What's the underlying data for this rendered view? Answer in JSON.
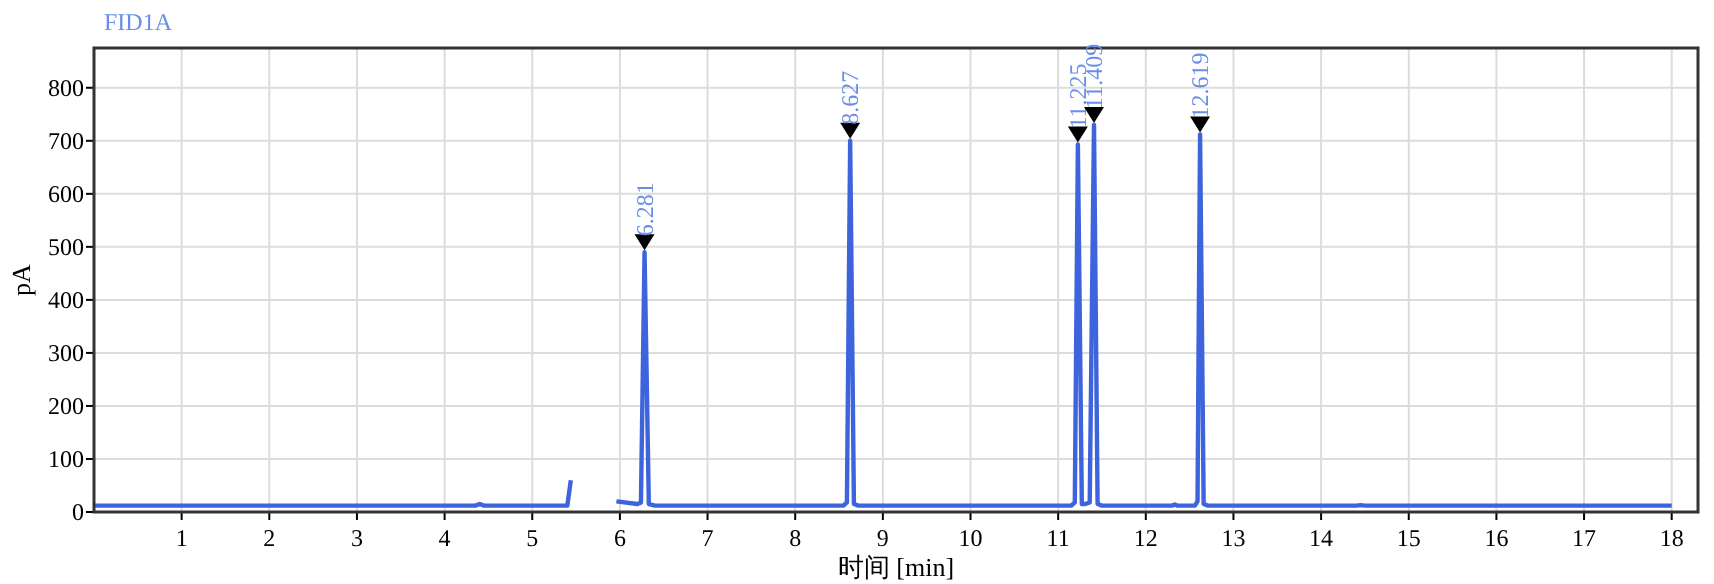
{
  "chart_data": {
    "type": "line",
    "title": "FID1A",
    "xlabel": "时间 [min]",
    "ylabel": "pA",
    "x": [
      0,
      4.35,
      4.4,
      4.45,
      5.4,
      5.44,
      5.47,
      5.93,
      5.96,
      6.2,
      6.24,
      6.281,
      6.33,
      6.4,
      8.55,
      8.59,
      8.627,
      8.67,
      8.72,
      11.15,
      11.19,
      11.225,
      11.27,
      11.31,
      11.36,
      11.409,
      11.45,
      11.5,
      12.3,
      12.33,
      12.36,
      12.56,
      12.59,
      12.619,
      12.66,
      12.71,
      14.4,
      14.45,
      14.5,
      18
    ],
    "values": [
      12,
      12,
      15,
      12,
      12,
      60,
      null,
      null,
      20,
      15,
      18,
      490,
      15,
      12,
      12,
      18,
      700,
      15,
      12,
      12,
      18,
      693,
      15,
      15,
      18,
      730,
      15,
      12,
      12,
      14,
      12,
      12,
      20,
      712,
      15,
      12,
      12,
      13,
      12,
      12
    ],
    "color": "#3d63dd",
    "xlim": [
      0,
      18.3
    ],
    "ylim": [
      0,
      875
    ],
    "xticks": [
      1,
      2,
      3,
      4,
      5,
      6,
      7,
      8,
      9,
      10,
      11,
      12,
      13,
      14,
      15,
      16,
      17,
      18
    ],
    "yticks": [
      0,
      100,
      200,
      300,
      400,
      500,
      600,
      700,
      800
    ],
    "grid": true,
    "annotations": [
      {
        "text": "6.281",
        "x": 6.281,
        "y": 490
      },
      {
        "text": "8.627",
        "x": 8.627,
        "y": 700
      },
      {
        "text": "11.225",
        "x": 11.225,
        "y": 693
      },
      {
        "text": "11.409",
        "x": 11.409,
        "y": 730
      },
      {
        "text": "12.619",
        "x": 12.619,
        "y": 712
      }
    ]
  }
}
